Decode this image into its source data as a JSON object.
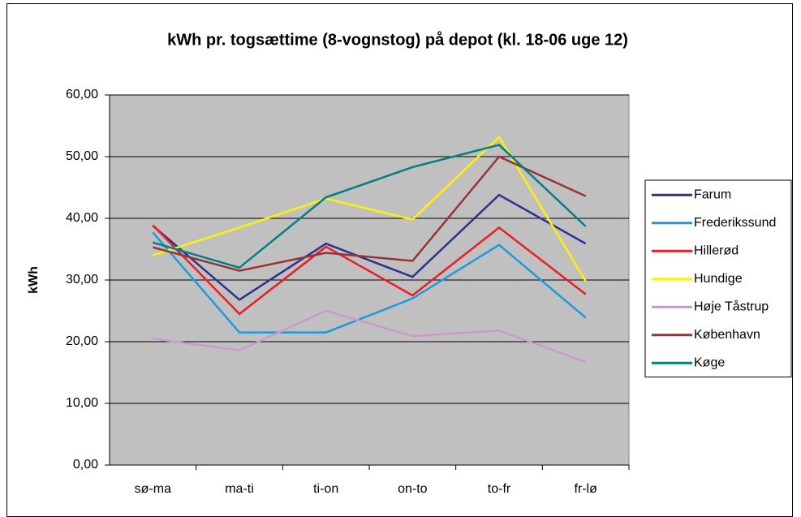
{
  "chart_data": {
    "type": "line",
    "title": "kWh pr. togsættime (8-vognstog) på depot (kl. 18-06 uge 12)",
    "y_label": "kWh",
    "categories": [
      "sø-ma",
      "ma-ti",
      "ti-on",
      "on-to",
      "to-fr",
      "fr-lø"
    ],
    "series": [
      {
        "name": "Farum",
        "color": "#2e3192",
        "values": [
          38.8,
          26.8,
          35.9,
          30.5,
          43.8,
          35.9
        ]
      },
      {
        "name": "Frederikssund",
        "color": "#1e9be0",
        "values": [
          37.7,
          21.5,
          21.5,
          27.0,
          35.7,
          23.9
        ]
      },
      {
        "name": "Hillerød",
        "color": "#ee1c24",
        "values": [
          38.9,
          24.5,
          35.4,
          27.5,
          38.5,
          27.7
        ]
      },
      {
        "name": "Hundige",
        "color": "#fff200",
        "values": [
          34.0,
          38.5,
          43.2,
          39.8,
          53.2,
          29.8
        ]
      },
      {
        "name": "Høje Tåstrup",
        "color": "#cc99cc",
        "values": [
          20.5,
          18.6,
          25.0,
          20.9,
          21.8,
          16.7
        ]
      },
      {
        "name": "København",
        "color": "#993333",
        "values": [
          35.3,
          31.5,
          34.4,
          33.1,
          50.0,
          43.6
        ]
      },
      {
        "name": "Køge",
        "color": "#008080",
        "values": [
          36.1,
          32.0,
          43.4,
          48.3,
          51.9,
          38.7
        ]
      }
    ],
    "ylim": [
      0,
      60
    ],
    "yticks": [
      {
        "value": 0,
        "label": "0,00"
      },
      {
        "value": 10,
        "label": "10,00"
      },
      {
        "value": 20,
        "label": "20,00"
      },
      {
        "value": 30,
        "label": "30,00"
      },
      {
        "value": 40,
        "label": "40,00"
      },
      {
        "value": 50,
        "label": "50,00"
      },
      {
        "value": 60,
        "label": "60,00"
      }
    ],
    "grid": true,
    "legend": "right"
  }
}
